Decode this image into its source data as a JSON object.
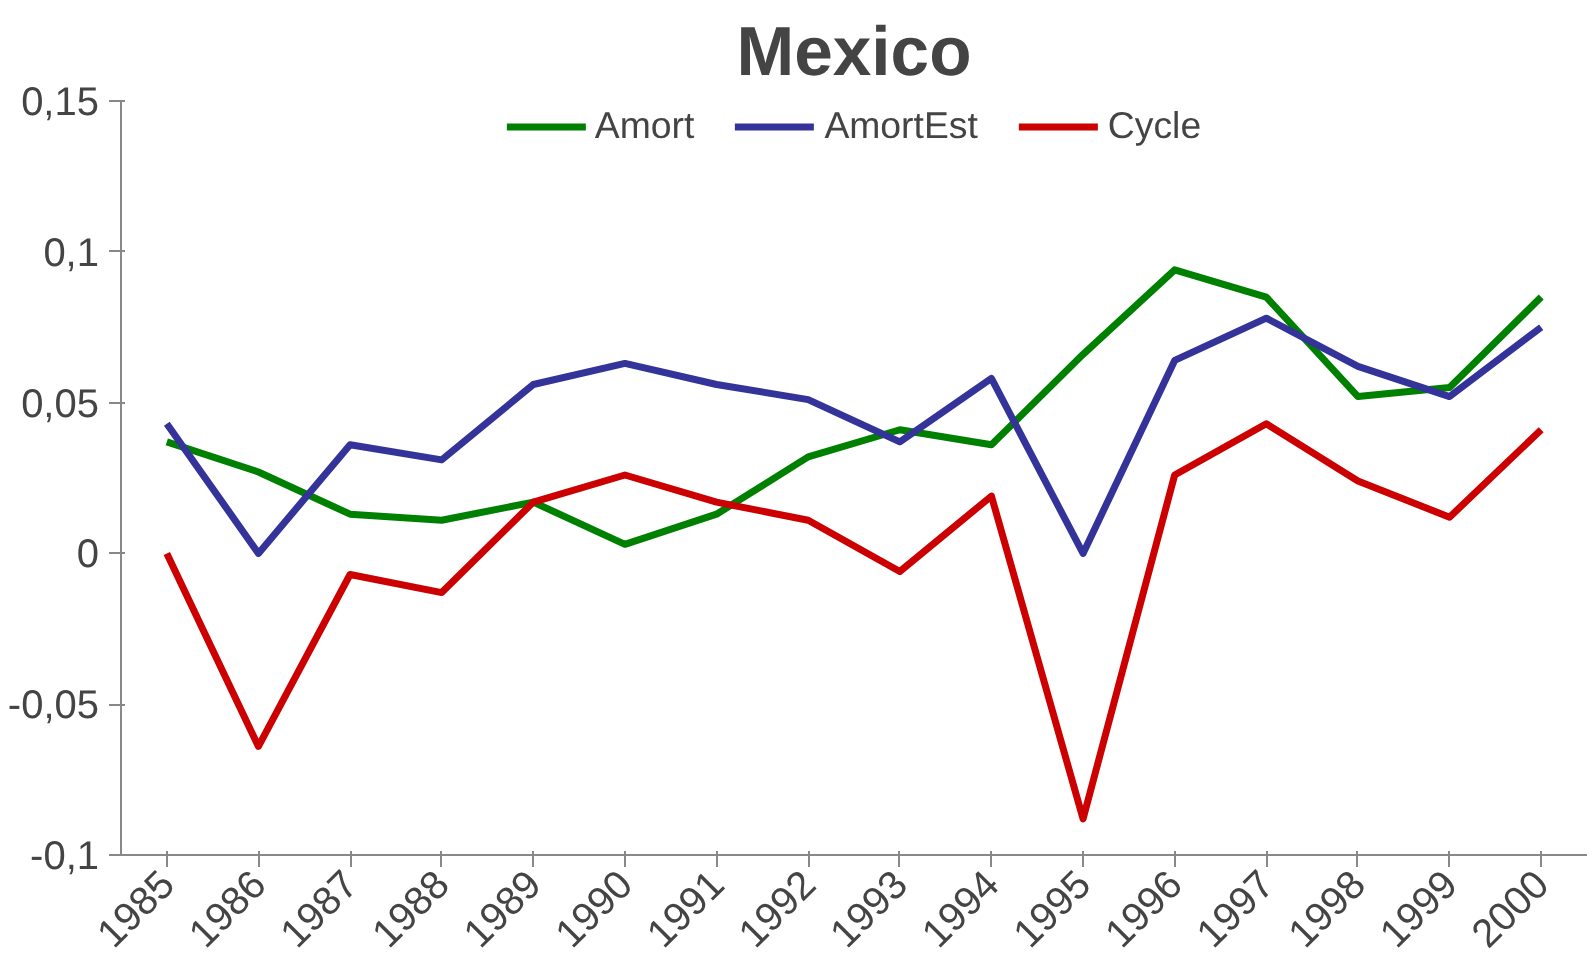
{
  "chart_data": {
    "type": "line",
    "title": "Mexico",
    "categories": [
      "1985",
      "1986",
      "1987",
      "1988",
      "1989",
      "1990",
      "1991",
      "1992",
      "1993",
      "1994",
      "1995",
      "1996",
      "1997",
      "1998",
      "1999",
      "2000"
    ],
    "series": [
      {
        "name": "Amort",
        "color": "#008000",
        "values": [
          0.037,
          0.027,
          0.013,
          0.011,
          0.017,
          0.003,
          0.013,
          0.032,
          0.041,
          0.036,
          0.066,
          0.094,
          0.085,
          0.052,
          0.055,
          0.085
        ]
      },
      {
        "name": "AmortEst",
        "color": "#333399",
        "values": [
          0.043,
          0.0,
          0.036,
          0.031,
          0.056,
          0.063,
          0.056,
          0.051,
          0.037,
          0.058,
          0.0,
          0.064,
          0.078,
          0.062,
          0.052,
          0.075
        ]
      },
      {
        "name": "Cycle",
        "color": "#cc0000",
        "values": [
          0.0,
          -0.064,
          -0.007,
          -0.013,
          0.017,
          0.026,
          0.017,
          0.011,
          -0.006,
          0.019,
          -0.088,
          0.026,
          0.043,
          0.024,
          0.012,
          0.041
        ]
      }
    ],
    "ylim": [
      -0.1,
      0.15
    ],
    "yticks": [
      {
        "value": -0.1,
        "label": "-0,1"
      },
      {
        "value": -0.05,
        "label": "-0,05"
      },
      {
        "value": 0,
        "label": "0"
      },
      {
        "value": 0.05,
        "label": "0,05"
      },
      {
        "value": 0.1,
        "label": "0,1"
      },
      {
        "value": 0.15,
        "label": "0,15"
      }
    ],
    "grid": false,
    "legend": "top",
    "marker": "none",
    "line_style": "solid"
  }
}
